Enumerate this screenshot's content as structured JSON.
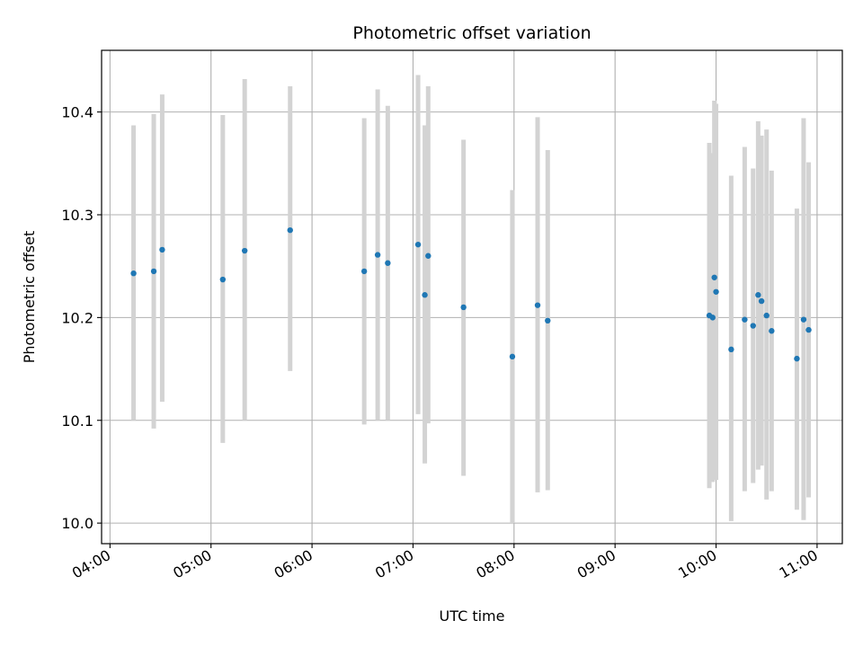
{
  "chart_data": {
    "type": "scatter",
    "title": "Photometric offset variation",
    "xlabel": "UTC time",
    "ylabel": "Photometric offset",
    "x_type": "time",
    "xlim": [
      "03:55",
      "11:15"
    ],
    "ylim": [
      9.98,
      10.46
    ],
    "x_ticks": [
      "04:00",
      "05:00",
      "06:00",
      "07:00",
      "08:00",
      "09:00",
      "10:00",
      "11:00"
    ],
    "y_ticks": [
      10.0,
      10.1,
      10.2,
      10.3,
      10.4
    ],
    "y_tick_labels": [
      "10.0",
      "10.1",
      "10.2",
      "10.3",
      "10.4"
    ],
    "grid": true,
    "legend": false,
    "colors": {
      "points": "#1f77b4",
      "errorbars": "#d3d3d3",
      "grid": "#b0b0b0"
    },
    "series": [
      {
        "points": [
          {
            "x": "04:14",
            "y": 10.243,
            "ylow": 10.1,
            "yhigh": 10.387
          },
          {
            "x": "04:26",
            "y": 10.245,
            "ylow": 10.092,
            "yhigh": 10.398
          },
          {
            "x": "04:31",
            "y": 10.266,
            "ylow": 10.118,
            "yhigh": 10.417
          },
          {
            "x": "05:07",
            "y": 10.237,
            "ylow": 10.078,
            "yhigh": 10.397
          },
          {
            "x": "05:20",
            "y": 10.265,
            "ylow": 10.1,
            "yhigh": 10.432
          },
          {
            "x": "05:47",
            "y": 10.285,
            "ylow": 10.148,
            "yhigh": 10.425
          },
          {
            "x": "06:31",
            "y": 10.245,
            "ylow": 10.096,
            "yhigh": 10.394
          },
          {
            "x": "06:39",
            "y": 10.261,
            "ylow": 10.1,
            "yhigh": 10.422
          },
          {
            "x": "06:45",
            "y": 10.253,
            "ylow": 10.1,
            "yhigh": 10.406
          },
          {
            "x": "07:03",
            "y": 10.271,
            "ylow": 10.106,
            "yhigh": 10.436
          },
          {
            "x": "07:07",
            "y": 10.222,
            "ylow": 10.058,
            "yhigh": 10.387
          },
          {
            "x": "07:09",
            "y": 10.26,
            "ylow": 10.097,
            "yhigh": 10.425
          },
          {
            "x": "07:30",
            "y": 10.21,
            "ylow": 10.046,
            "yhigh": 10.373
          },
          {
            "x": "07:59",
            "y": 10.162,
            "ylow": 10.0,
            "yhigh": 10.324
          },
          {
            "x": "08:14",
            "y": 10.212,
            "ylow": 10.03,
            "yhigh": 10.395
          },
          {
            "x": "08:20",
            "y": 10.197,
            "ylow": 10.032,
            "yhigh": 10.363
          },
          {
            "x": "09:56",
            "y": 10.202,
            "ylow": 10.034,
            "yhigh": 10.37
          },
          {
            "x": "09:58",
            "y": 10.2,
            "ylow": 10.04,
            "yhigh": 10.36
          },
          {
            "x": "09:59",
            "y": 10.239,
            "ylow": 10.046,
            "yhigh": 10.411
          },
          {
            "x": "10:00",
            "y": 10.225,
            "ylow": 10.042,
            "yhigh": 10.408
          },
          {
            "x": "10:09",
            "y": 10.169,
            "ylow": 10.002,
            "yhigh": 10.338
          },
          {
            "x": "10:17",
            "y": 10.198,
            "ylow": 10.031,
            "yhigh": 10.366
          },
          {
            "x": "10:22",
            "y": 10.192,
            "ylow": 10.039,
            "yhigh": 10.345
          },
          {
            "x": "10:25",
            "y": 10.222,
            "ylow": 10.052,
            "yhigh": 10.391
          },
          {
            "x": "10:27",
            "y": 10.216,
            "ylow": 10.056,
            "yhigh": 10.377
          },
          {
            "x": "10:30",
            "y": 10.202,
            "ylow": 10.023,
            "yhigh": 10.383
          },
          {
            "x": "10:33",
            "y": 10.187,
            "ylow": 10.031,
            "yhigh": 10.343
          },
          {
            "x": "10:48",
            "y": 10.16,
            "ylow": 10.013,
            "yhigh": 10.306
          },
          {
            "x": "10:52",
            "y": 10.198,
            "ylow": 10.003,
            "yhigh": 10.394
          },
          {
            "x": "10:55",
            "y": 10.188,
            "ylow": 10.025,
            "yhigh": 10.351
          }
        ]
      }
    ]
  }
}
